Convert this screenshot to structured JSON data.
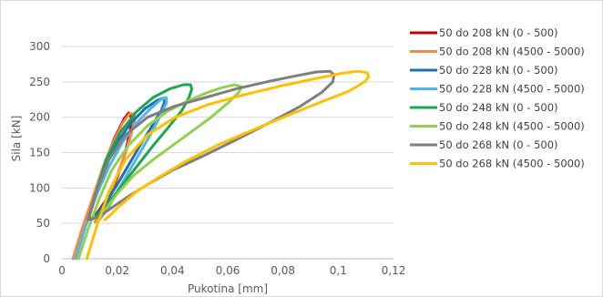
{
  "chart_data": {
    "type": "scatter",
    "xlabel": "Pukotina [mm]",
    "ylabel": "Sila [kN]",
    "xlim": [
      0,
      0.12
    ],
    "ylim": [
      0,
      340
    ],
    "x_ticks": [
      "0",
      "0,02",
      "0,04",
      "0,06",
      "0,08",
      "0,1",
      "0,12"
    ],
    "y_ticks": [
      "0",
      "50",
      "100",
      "150",
      "200",
      "250",
      "300"
    ],
    "x_tick_values": [
      0,
      0.02,
      0.04,
      0.06,
      0.08,
      0.1,
      0.12
    ],
    "y_tick_values": [
      0,
      50,
      100,
      150,
      200,
      250,
      300
    ],
    "grid": "horizontal",
    "legend_position": "right",
    "series": [
      {
        "name": "50 do 208 kN (0 - 500)",
        "color": "#c00000",
        "x": [
          0.009,
          0.0115,
          0.015,
          0.019,
          0.0225,
          0.0242,
          0.0248,
          0.0252,
          0.0247,
          0.0235,
          0.0215,
          0.0185,
          0.0155,
          0.0128,
          0.0105,
          0.009
        ],
        "y": [
          55,
          90,
          130,
          170,
          198,
          206,
          204,
          196,
          180,
          160,
          130,
          100,
          80,
          65,
          57,
          55
        ]
      },
      {
        "name": "50 do 208 kN (4500 - 5000)",
        "color": "#f4874b",
        "x": [
          0.004,
          0.0075,
          0.0115,
          0.0145,
          0.018,
          0.022,
          0.0245,
          0.0262,
          0.0262,
          0.025,
          0.023,
          0.02,
          0.017,
          0.014,
          0.012
        ],
        "y": [
          0,
          45,
          90,
          125,
          160,
          192,
          205,
          205,
          195,
          175,
          150,
          118,
          88,
          63,
          52
        ]
      },
      {
        "name": "50 do 228 kN (0 - 500)",
        "color": "#1f6fb6",
        "x": [
          0.0095,
          0.0125,
          0.016,
          0.02,
          0.025,
          0.03,
          0.0345,
          0.0368,
          0.0372,
          0.036,
          0.033,
          0.029,
          0.0245,
          0.02,
          0.016,
          0.0125,
          0.0105,
          0.0095
        ],
        "y": [
          55,
          95,
          135,
          165,
          192,
          212,
          224,
          227,
          222,
          210,
          190,
          165,
          135,
          105,
          80,
          62,
          56,
          55
        ]
      },
      {
        "name": "50 do 228 kN (4500 - 5000)",
        "color": "#4fb7e3",
        "x": [
          0.005,
          0.0085,
          0.0125,
          0.017,
          0.022,
          0.027,
          0.032,
          0.0358,
          0.0378,
          0.0378,
          0.036,
          0.033,
          0.029,
          0.0245,
          0.02,
          0.0165,
          0.0135
        ],
        "y": [
          0,
          45,
          90,
          130,
          165,
          192,
          212,
          225,
          228,
          220,
          205,
          182,
          155,
          125,
          95,
          70,
          55
        ]
      },
      {
        "name": "50 do 248 kN (0 - 500)",
        "color": "#1aa84f",
        "x": [
          0.0095,
          0.0125,
          0.016,
          0.021,
          0.027,
          0.033,
          0.039,
          0.044,
          0.0465,
          0.047,
          0.046,
          0.0435,
          0.039,
          0.033,
          0.027,
          0.021,
          0.016,
          0.0125,
          0.0105,
          0.0095
        ],
        "y": [
          55,
          95,
          140,
          178,
          208,
          228,
          240,
          246,
          246,
          240,
          228,
          210,
          188,
          160,
          130,
          100,
          75,
          60,
          56,
          55
        ]
      },
      {
        "name": "50 do 248 kN (4500 - 5000)",
        "color": "#92d050",
        "x": [
          0.006,
          0.0095,
          0.0135,
          0.018,
          0.024,
          0.031,
          0.038,
          0.045,
          0.052,
          0.058,
          0.0625,
          0.065,
          0.064,
          0.06,
          0.054,
          0.047,
          0.04,
          0.033,
          0.026,
          0.02,
          0.0155,
          0.013
        ],
        "y": [
          0,
          42,
          85,
          125,
          160,
          188,
          208,
          222,
          234,
          242,
          246,
          243,
          235,
          220,
          200,
          180,
          160,
          140,
          118,
          92,
          68,
          55
        ]
      },
      {
        "name": "50 do 268 kN (0 - 500)",
        "color": "#7f7f7f",
        "x": [
          0.0095,
          0.0125,
          0.017,
          0.023,
          0.031,
          0.041,
          0.052,
          0.063,
          0.074,
          0.084,
          0.092,
          0.097,
          0.0985,
          0.098,
          0.094,
          0.086,
          0.075,
          0.063,
          0.051,
          0.04,
          0.031,
          0.024,
          0.018,
          0.0135,
          0.011,
          0.0095
        ],
        "y": [
          55,
          95,
          140,
          175,
          200,
          216,
          228,
          240,
          250,
          258,
          264,
          265,
          260,
          250,
          235,
          215,
          192,
          168,
          145,
          125,
          105,
          88,
          72,
          60,
          56,
          55
        ]
      },
      {
        "name": "50 do 268 kN (4500 - 5000)",
        "color": "#ffc000",
        "x": [
          0.009,
          0.0125,
          0.017,
          0.023,
          0.031,
          0.041,
          0.053,
          0.066,
          0.079,
          0.091,
          0.101,
          0.107,
          0.1105,
          0.111,
          0.1095,
          0.104,
          0.094,
          0.082,
          0.069,
          0.056,
          0.045,
          0.035,
          0.027,
          0.021,
          0.017,
          0.0155
        ],
        "y": [
          0,
          45,
          95,
          140,
          175,
          200,
          218,
          232,
          244,
          254,
          262,
          265,
          263,
          257,
          250,
          237,
          222,
          203,
          182,
          160,
          138,
          115,
          95,
          75,
          60,
          55
        ]
      }
    ]
  }
}
